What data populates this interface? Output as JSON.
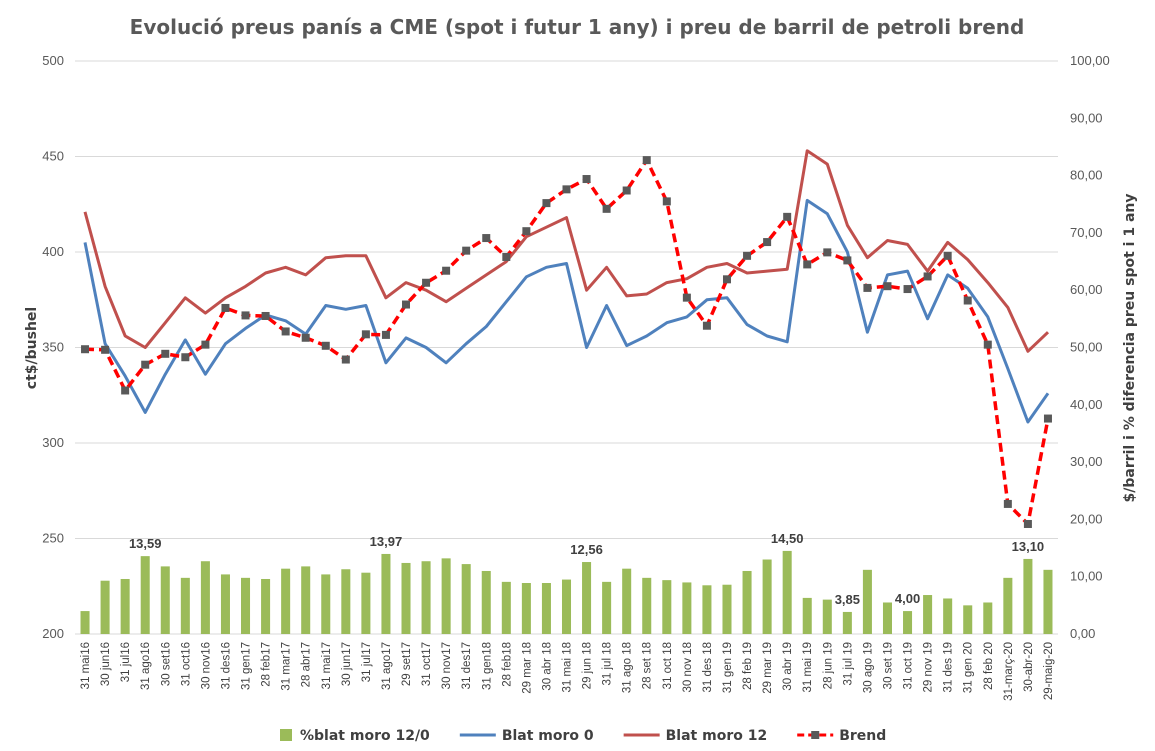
{
  "chart_data": {
    "type": "bar+line",
    "title": "Evolució preus panís a CME (spot i futur 1 any) i preu de barril de petroli brend",
    "ylabel_left": "ct$/bushel",
    "ylabel_right": "$/barril i % diferencia preu spot i 1 any",
    "ylim_left": [
      200,
      500
    ],
    "ylim_right": [
      0,
      100
    ],
    "yticks_left": [
      "200",
      "250",
      "300",
      "350",
      "400",
      "450",
      "500"
    ],
    "yticks_right": [
      "0,00",
      "10,00",
      "20,00",
      "30,00",
      "40,00",
      "50,00",
      "60,00",
      "70,00",
      "80,00",
      "90,00",
      "100,00"
    ],
    "grid": true,
    "legend_position": "bottom",
    "categories": [
      "31 mai16",
      "30 jun16",
      "31 jul16",
      "31 ago16",
      "30 set16",
      "31 oct16",
      "30 nov16",
      "31 des16",
      "31 gen17",
      "28 feb17",
      "31 mar17",
      "28 abr17",
      "31 mai17",
      "30 jun17",
      "31 jul17",
      "31 ago17",
      "29 set17",
      "31 oct17",
      "30 nov17",
      "31 des17",
      "31 gen18",
      "28 feb18",
      "29 mar 18",
      "30 abr 18",
      "31 mai 18",
      "29 jun 18",
      "31 jul 18",
      "31 ago 18",
      "28 set 18",
      "31 oct 18",
      "30 nov 18",
      "31 des 18",
      "31 gen 19",
      "28 feb 19",
      "29 mar 19",
      "30 abr 19",
      "31 mai 19",
      "28 jun 19",
      "31 jul 19",
      "30 ago 19",
      "30 set 19",
      "31 oct 19",
      "29 nov 19",
      "31 des 19",
      "31 gen 20",
      "28 feb 20",
      "31-març-20",
      "30-abr-20",
      "29-maig-20"
    ],
    "series": [
      {
        "name": "%blat moro 12/0",
        "type": "bar",
        "axis": "right",
        "color": "#9BBB59",
        "values": [
          4.0,
          9.3,
          9.6,
          13.59,
          11.8,
          9.8,
          12.7,
          10.4,
          9.8,
          9.6,
          11.4,
          11.8,
          10.4,
          11.3,
          10.7,
          13.97,
          12.4,
          12.7,
          13.2,
          12.2,
          11.0,
          9.1,
          8.9,
          8.9,
          9.5,
          12.56,
          9.1,
          11.4,
          9.8,
          9.4,
          9.0,
          8.5,
          8.6,
          11.0,
          13.0,
          14.5,
          6.3,
          6.0,
          3.85,
          11.2,
          5.5,
          4.0,
          6.8,
          6.2,
          5.0,
          5.5,
          9.8,
          13.1,
          11.2
        ]
      },
      {
        "name": "Blat moro 0",
        "type": "line",
        "axis": "left",
        "color": "#4F81BD",
        "values": [
          405,
          352,
          335,
          316,
          336,
          354,
          336,
          352,
          360,
          367,
          364,
          357,
          372,
          370,
          372,
          342,
          355,
          350,
          342,
          352,
          361,
          374,
          387,
          392,
          394,
          350,
          372,
          351,
          356,
          363,
          366,
          375,
          376,
          362,
          356,
          353,
          427,
          420,
          400,
          358,
          388,
          390,
          365,
          388,
          381,
          366,
          339,
          311,
          326
        ]
      },
      {
        "name": "Blat moro 12",
        "type": "line",
        "axis": "left",
        "color": "#C0504D",
        "values": [
          421,
          382,
          356,
          350,
          363,
          376,
          368,
          376,
          382,
          389,
          392,
          388,
          397,
          398,
          398,
          376,
          384,
          380,
          374,
          381,
          388,
          395,
          408,
          413,
          418,
          380,
          392,
          377,
          378,
          384,
          386,
          392,
          394,
          389,
          390,
          391,
          453,
          446,
          414,
          397,
          406,
          404,
          390,
          405,
          396,
          384,
          371,
          348,
          358
        ]
      },
      {
        "name": "Brend",
        "type": "line",
        "axis": "right",
        "color": "#FF0000",
        "values": [
          49.7,
          49.6,
          42.5,
          47.0,
          48.9,
          48.3,
          50.5,
          56.9,
          55.6,
          55.5,
          52.8,
          51.7,
          50.3,
          47.9,
          52.3,
          52.2,
          57.5,
          61.3,
          63.4,
          66.9,
          69.1,
          65.8,
          70.3,
          75.2,
          77.6,
          79.4,
          74.2,
          77.4,
          82.7,
          75.5,
          58.7,
          53.8,
          61.9,
          66.0,
          68.4,
          72.8,
          64.5,
          66.6,
          65.2,
          60.4,
          60.7,
          60.2,
          62.4,
          66.0,
          58.2,
          50.5,
          22.7,
          19.2,
          37.6
        ]
      }
    ],
    "data_labels": [
      {
        "index": 3,
        "text": "13,59"
      },
      {
        "index": 15,
        "text": "13,97"
      },
      {
        "index": 25,
        "text": "12,56"
      },
      {
        "index": 35,
        "text": "14,50"
      },
      {
        "index": 38,
        "text": "3,85"
      },
      {
        "index": 41,
        "text": "4,00"
      },
      {
        "index": 47,
        "text": "13,10"
      }
    ]
  }
}
